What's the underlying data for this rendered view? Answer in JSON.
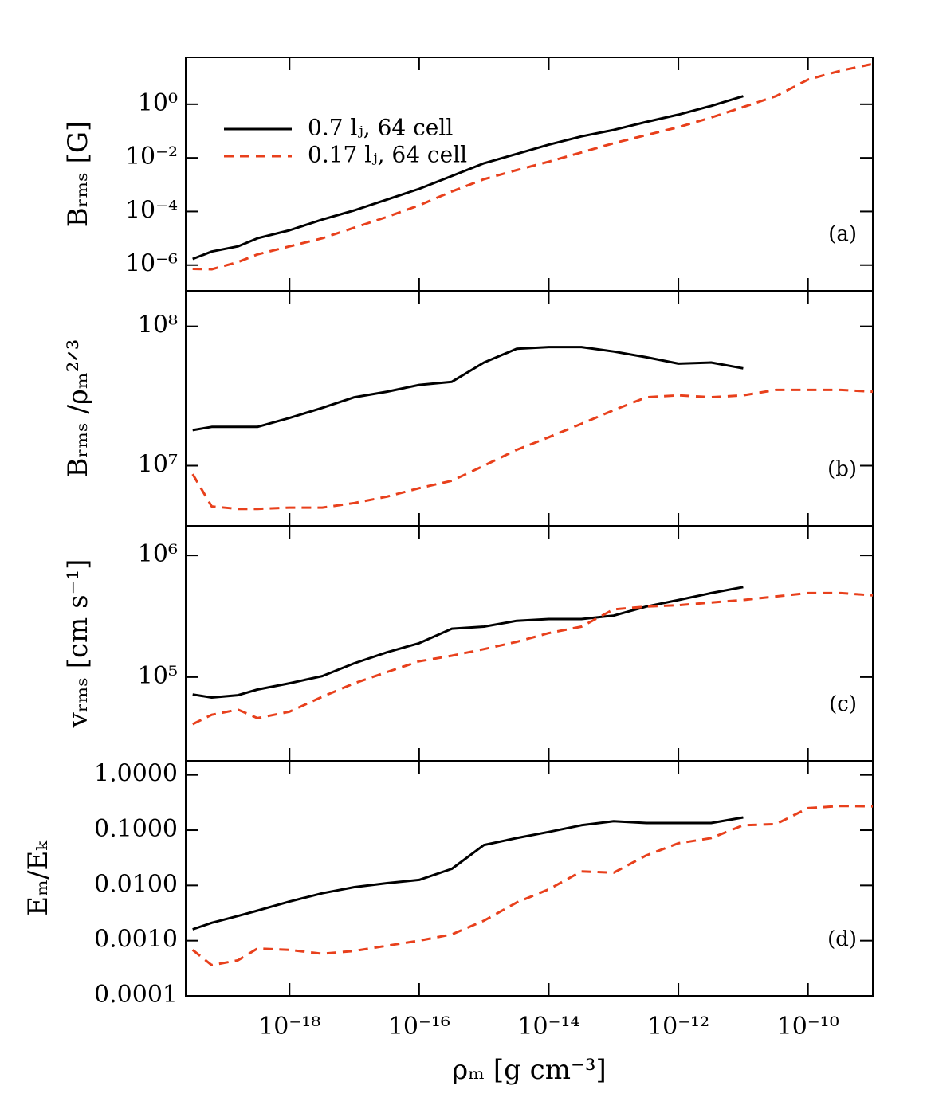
{
  "chart_data": [
    {
      "type": "line",
      "panel_label": "(a)",
      "y_label": "Bᵣₘₛ [G]",
      "xscale": "log",
      "yscale": "log",
      "legend": "upper left",
      "x": [
        3.2e-20,
        6.3e-20,
        1.6e-19,
        3.2e-19,
        1e-18,
        3.2e-18,
        1e-17,
        3.2e-17,
        1e-16,
        3.2e-16,
        1e-15,
        3.2e-15,
        1e-14,
        3.2e-14,
        1e-13,
        3.2e-13,
        1e-12,
        3.2e-12,
        1e-11,
        3.2e-11,
        1e-10,
        3.2e-10,
        1e-09
      ],
      "xlim": [
        2.5e-20,
        1e-09
      ],
      "ylim": [
        1.1e-07,
        56
      ],
      "yticks": [
        {
          "value": 1,
          "label": "10⁰"
        },
        {
          "value": 0.01,
          "label": "10⁻²"
        },
        {
          "value": 0.0001,
          "label": "10⁻⁴"
        },
        {
          "value": 1e-06,
          "label": "10⁻⁶"
        }
      ],
      "series": [
        {
          "name": "0.7 lⱼ, 64 cell",
          "color": "#000000",
          "linestyle": "solid",
          "values": [
            1.7e-06,
            3.2e-06,
            5e-06,
            1e-05,
            2e-05,
            5e-05,
            0.00011,
            0.00028,
            0.0007,
            0.0021,
            0.0063,
            0.014,
            0.031,
            0.063,
            0.11,
            0.22,
            0.41,
            0.87,
            2.0,
            null,
            null,
            null,
            null
          ]
        },
        {
          "name": "0.17 lⱼ, 64 cell",
          "color": "#e8401c",
          "linestyle": "dashed",
          "values": [
            7.2e-07,
            7e-07,
            1.3e-06,
            2.5e-06,
            5e-06,
            1e-05,
            2.5e-05,
            6.3e-05,
            0.00017,
            0.00056,
            0.0016,
            0.0035,
            0.0072,
            0.016,
            0.035,
            0.071,
            0.14,
            0.32,
            0.79,
            2.0,
            8.3,
            18,
            32
          ]
        }
      ]
    },
    {
      "type": "line",
      "panel_label": "(b)",
      "y_label": "Bᵣₘₛ /ρₘ²ᐟ³",
      "xscale": "log",
      "yscale": "log",
      "x": [
        3.2e-20,
        6.3e-20,
        1.6e-19,
        3.2e-19,
        1e-18,
        3.2e-18,
        1e-17,
        3.2e-17,
        1e-16,
        3.2e-16,
        1e-15,
        3.2e-15,
        1e-14,
        3.2e-14,
        1e-13,
        3.2e-13,
        1e-12,
        3.2e-12,
        1e-11,
        3.2e-11,
        1e-10,
        3.2e-10,
        1e-09
      ],
      "xlim": [
        2.5e-20,
        1e-09
      ],
      "ylim": [
        3700000.0,
        180000000.0
      ],
      "yticks": [
        {
          "value": 100000000,
          "label": "10⁸"
        },
        {
          "value": 10000000,
          "label": "10⁷"
        }
      ],
      "series": [
        {
          "color": "#000000",
          "linestyle": "solid",
          "values": [
            18000000.0,
            19000000.0,
            19000000.0,
            19000000.0,
            22000000.0,
            26000000.0,
            31000000.0,
            34000000.0,
            38000000.0,
            40000000.0,
            55000000.0,
            69000000.0,
            71000000.0,
            71000000.0,
            66000000.0,
            60000000.0,
            54000000.0,
            55000000.0,
            50000000.0,
            null,
            null,
            null,
            null
          ]
        },
        {
          "color": "#e8401c",
          "linestyle": "dashed",
          "values": [
            8700000.0,
            5100000.0,
            4900000.0,
            4900000.0,
            5000000.0,
            5000000.0,
            5400000.0,
            6000000.0,
            6900000.0,
            7800000.0,
            10000000.0,
            13000000.0,
            16000000.0,
            20000000.0,
            25000000.0,
            31000000.0,
            32000000.0,
            31000000.0,
            32000000.0,
            35000000.0,
            35000000.0,
            35000000.0,
            34000000.0
          ]
        }
      ]
    },
    {
      "type": "line",
      "panel_label": "(c)",
      "y_label": "vᵣₘₛ [cm s⁻¹]",
      "xscale": "log",
      "yscale": "log",
      "x": [
        3.2e-20,
        6.3e-20,
        1.6e-19,
        3.2e-19,
        1e-18,
        3.2e-18,
        1e-17,
        3.2e-17,
        1e-16,
        3.2e-16,
        1e-15,
        3.2e-15,
        1e-14,
        3.2e-14,
        1e-13,
        3.2e-13,
        1e-12,
        3.2e-12,
        1e-11,
        3.2e-11,
        1e-10,
        3.2e-10,
        1e-09
      ],
      "xlim": [
        2.5e-20,
        1e-09
      ],
      "ylim": [
        20500,
        1750000
      ],
      "yticks": [
        {
          "value": 1000000,
          "label": "10⁶"
        },
        {
          "value": 100000,
          "label": "10⁵"
        }
      ],
      "series": [
        {
          "color": "#000000",
          "linestyle": "solid",
          "values": [
            72000.0,
            68000.0,
            71000.0,
            79000.0,
            89000.0,
            102000.0,
            130000.0,
            160000.0,
            190000.0,
            250000.0,
            260000.0,
            290000.0,
            300000.0,
            300000.0,
            320000.0,
            380000.0,
            430000.0,
            490000.0,
            550000.0,
            null,
            null,
            null,
            null
          ]
        },
        {
          "color": "#e8401c",
          "linestyle": "dashed",
          "values": [
            41000.0,
            49000.0,
            54000.0,
            46000.0,
            52000.0,
            69000.0,
            89000.0,
            110000.0,
            135000.0,
            150000.0,
            170000.0,
            195000.0,
            230000.0,
            260000.0,
            360000.0,
            380000.0,
            390000.0,
            410000.0,
            430000.0,
            460000.0,
            490000.0,
            490000.0,
            470000.0
          ]
        }
      ]
    },
    {
      "type": "line",
      "panel_label": "(d)",
      "y_label": "Eₘ/Eₖ",
      "x_label": "ρₘ [g cm⁻³]",
      "xscale": "log",
      "yscale": "log",
      "x": [
        3.2e-20,
        6.3e-20,
        1.6e-19,
        3.2e-19,
        1e-18,
        3.2e-18,
        1e-17,
        3.2e-17,
        1e-16,
        3.2e-16,
        1e-15,
        3.2e-15,
        1e-14,
        3.2e-14,
        1e-13,
        3.2e-13,
        1e-12,
        3.2e-12,
        1e-11,
        3.2e-11,
        1e-10,
        3.2e-10,
        1e-09
      ],
      "xlim": [
        2.5e-20,
        1e-09
      ],
      "ylim": [
        0.0001,
        1.8
      ],
      "xticks": [
        {
          "value": 1e-18,
          "label": "10⁻¹⁸"
        },
        {
          "value": 1e-16,
          "label": "10⁻¹⁶"
        },
        {
          "value": 1e-14,
          "label": "10⁻¹⁴"
        },
        {
          "value": 1e-12,
          "label": "10⁻¹²"
        },
        {
          "value": 1e-10,
          "label": "10⁻¹⁰"
        }
      ],
      "yticks": [
        {
          "value": 1,
          "label": "1.0000"
        },
        {
          "value": 0.1,
          "label": "0.1000"
        },
        {
          "value": 0.01,
          "label": "0.0100"
        },
        {
          "value": 0.001,
          "label": "0.0010"
        },
        {
          "value": 0.0001,
          "label": "0.0001"
        }
      ],
      "series": [
        {
          "color": "#000000",
          "linestyle": "solid",
          "values": [
            0.0016,
            0.0021,
            0.0028,
            0.0035,
            0.0051,
            0.0072,
            0.0093,
            0.011,
            0.0126,
            0.02,
            0.054,
            0.072,
            0.093,
            0.123,
            0.145,
            0.135,
            0.135,
            0.135,
            0.17,
            null,
            null,
            null,
            null
          ]
        },
        {
          "color": "#e8401c",
          "linestyle": "dashed",
          "values": [
            0.00068,
            0.00036,
            0.00044,
            0.00072,
            0.00068,
            0.00058,
            0.00065,
            0.00081,
            0.001,
            0.0013,
            0.0023,
            0.0049,
            0.0085,
            0.018,
            0.017,
            0.035,
            0.058,
            0.072,
            0.123,
            0.129,
            0.25,
            0.275,
            0.27
          ]
        }
      ]
    }
  ]
}
